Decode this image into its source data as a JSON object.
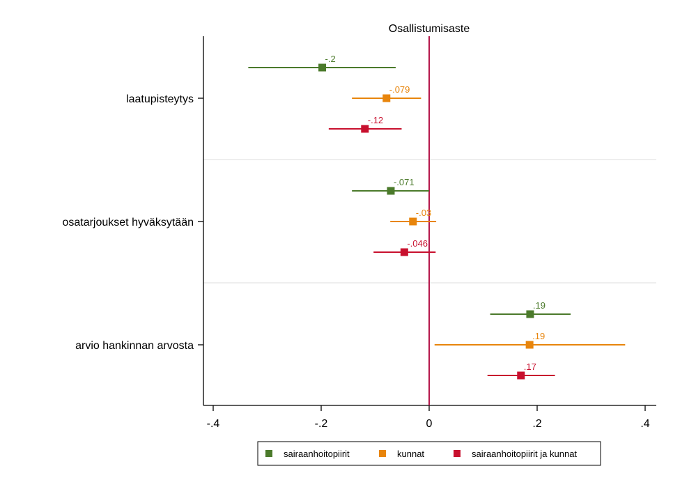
{
  "chart_data": {
    "type": "coefplot",
    "title": "Osallistumisaste",
    "xlim": [
      -0.42,
      0.42
    ],
    "x_ticks": [
      {
        "value": -0.4,
        "label": "-.4"
      },
      {
        "value": -0.2,
        "label": "-.2"
      },
      {
        "value": 0,
        "label": "0"
      },
      {
        "value": 0.2,
        "label": ".2"
      },
      {
        "value": 0.4,
        "label": ".4"
      }
    ],
    "reference_line": 0,
    "categories": [
      "laatupisteytys",
      "osatarjoukset hyväksytään",
      "arvio hankinnan arvosta"
    ],
    "series": [
      {
        "name": "sairaanhoitopiirit",
        "color": "#4b7a2b",
        "points": [
          {
            "estimate": -0.198,
            "low": -0.335,
            "high": -0.062,
            "label": "-.2"
          },
          {
            "estimate": -0.071,
            "low": -0.143,
            "high": 0.0,
            "label": "-.071"
          },
          {
            "estimate": 0.187,
            "low": 0.113,
            "high": 0.262,
            "label": ".19"
          }
        ]
      },
      {
        "name": "kunnat",
        "color": "#e8850c",
        "points": [
          {
            "estimate": -0.079,
            "low": -0.143,
            "high": -0.015,
            "label": "-.079"
          },
          {
            "estimate": -0.03,
            "low": -0.072,
            "high": 0.013,
            "label": "-.03"
          },
          {
            "estimate": 0.186,
            "low": 0.01,
            "high": 0.363,
            "label": ".19"
          }
        ]
      },
      {
        "name": "sairaanhoitopiirit ja kunnat",
        "color": "#c8102e",
        "points": [
          {
            "estimate": -0.119,
            "low": -0.186,
            "high": -0.051,
            "label": "-.12"
          },
          {
            "estimate": -0.046,
            "low": -0.103,
            "high": 0.012,
            "label": "-.046"
          },
          {
            "estimate": 0.17,
            "low": 0.108,
            "high": 0.233,
            "label": ".17"
          }
        ]
      }
    ]
  }
}
